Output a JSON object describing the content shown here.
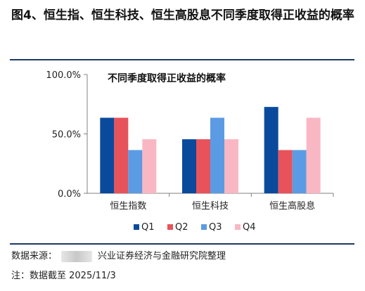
{
  "figure": {
    "title": "图4、恒生指、恒生科技、恒生高股息不同季度取得正收益的概率",
    "source_prefix": "数据来源：",
    "source_suffix": "兴业证券经济与金融研究院整理",
    "note": "注：数据截至 2025/11/3"
  },
  "colors": {
    "Q1": "#0a4a9c",
    "Q2": "#e8525a",
    "Q3": "#5b9be4",
    "Q4": "#f9b7c4",
    "rule": "#1f3864",
    "axis": "#808080"
  },
  "chart_data": {
    "type": "bar",
    "title": "不同季度取得正收益的概率",
    "categories": [
      "恒生指数",
      "恒生科技",
      "恒生高股息"
    ],
    "series": [
      {
        "name": "Q1",
        "values": [
          63.6,
          45.5,
          72.7
        ]
      },
      {
        "name": "Q2",
        "values": [
          63.6,
          45.5,
          36.4
        ]
      },
      {
        "name": "Q3",
        "values": [
          36.4,
          63.6,
          36.4
        ]
      },
      {
        "name": "Q4",
        "values": [
          45.5,
          45.5,
          63.6
        ]
      }
    ],
    "yticks": [
      "0.0%",
      "50.0%",
      "100.0%"
    ],
    "ylim": [
      0,
      100
    ],
    "legend_position": "bottom",
    "grid": false
  }
}
